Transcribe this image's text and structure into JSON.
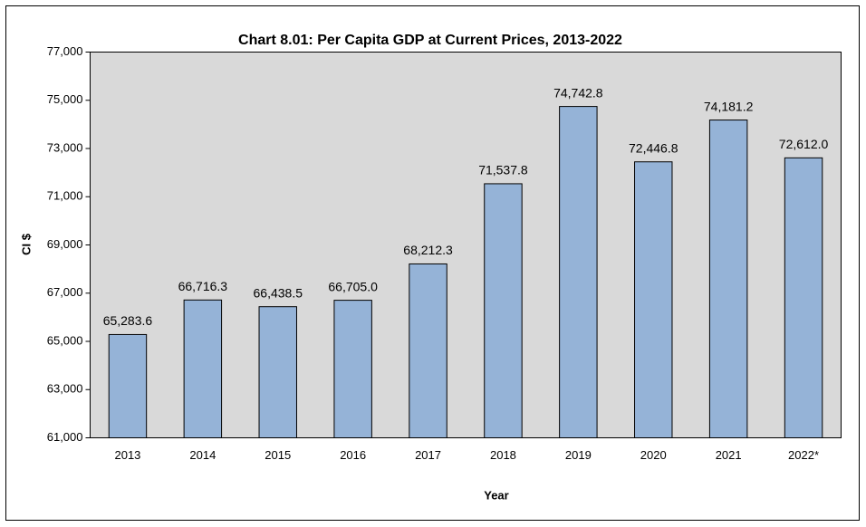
{
  "chart_data": {
    "type": "bar",
    "title": "Chart 8.01: Per Capita GDP at Current Prices, 2013-2022",
    "xlabel": "Year",
    "ylabel": "CI $",
    "categories": [
      "2013",
      "2014",
      "2015",
      "2016",
      "2017",
      "2018",
      "2019",
      "2020",
      "2021",
      "2022*"
    ],
    "values": [
      65283.6,
      66716.3,
      66438.5,
      66705.0,
      68212.3,
      71537.8,
      74742.8,
      72446.8,
      74181.2,
      72612.0
    ],
    "value_labels": [
      "65,283.6",
      "66,716.3",
      "66,438.5",
      "66,705.0",
      "68,212.3",
      "71,537.8",
      "74,742.8",
      "72,446.8",
      "74,181.2",
      "72,612.0"
    ],
    "color": "#95b3d7",
    "ylim": [
      61000,
      77000
    ],
    "yticks": [
      {
        "value": 61000,
        "label": "61,000"
      },
      {
        "value": 63000,
        "label": "63,000"
      },
      {
        "value": 65000,
        "label": "65,000"
      },
      {
        "value": 67000,
        "label": "67,000"
      },
      {
        "value": 69000,
        "label": "69,000"
      },
      {
        "value": 71000,
        "label": "71,000"
      },
      {
        "value": 73000,
        "label": "73,000"
      },
      {
        "value": 75000,
        "label": "75,000"
      },
      {
        "value": 77000,
        "label": "77,000"
      }
    ],
    "grid": false
  }
}
